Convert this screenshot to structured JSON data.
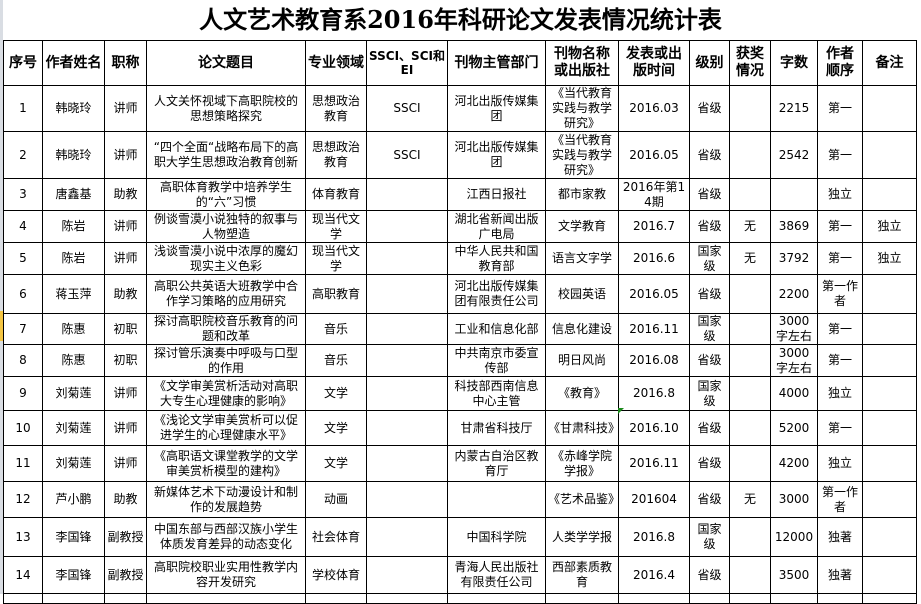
{
  "title": "人文艺术教育系2016年科研论文发表情况统计表",
  "columns": [
    "序号",
    "作者姓名",
    "职称",
    "论文题目",
    "专业领域",
    "SSCI、SCI和EI",
    "刊物主管部门",
    "刊物名称或出版社",
    "发表或出版时间",
    "级别",
    "获奖情况",
    "字数",
    "作者顺序",
    "备注"
  ],
  "rows": [
    [
      "1",
      "韩晓玲",
      "讲师",
      "人文关怀视域下高职院校的思想策略探究",
      "思想政治教育",
      "SSCI",
      "河北出版传媒集团",
      "《当代教育实践与教学研究》",
      "2016.03",
      "省级",
      "",
      "2215",
      "第一",
      ""
    ],
    [
      "2",
      "韩晓玲",
      "讲师",
      "“四个全面“战略布局下的高职大学生思想政治教育创新",
      "思想政治教育",
      "SSCI",
      "河北出版传媒集团",
      "《当代教育实践与教学研究》",
      "2016.05",
      "省级",
      "",
      "2542",
      "第一",
      ""
    ],
    [
      "3",
      "唐鑫基",
      "助教",
      "高职体育教学中培养学生的“六”习惯",
      "体育教育",
      "",
      "江西日报社",
      "都市家教",
      "2016年第14期",
      "省级",
      "",
      "",
      "独立",
      ""
    ],
    [
      "4",
      "陈岩",
      "讲师",
      "例谈雪漠小说独特的叙事与人物塑造",
      "现当代文学",
      "",
      "湖北省新闻出版广电局",
      "文学教育",
      "2016.7",
      "省级",
      "无",
      "3869",
      "第一",
      "独立"
    ],
    [
      "5",
      "陈岩",
      "讲师",
      "浅谈雪漠小说中浓厚的魔幻现实主义色彩",
      "现当代文学",
      "",
      "中华人民共和国教育部",
      "语言文字学",
      "2016.6",
      "国家级",
      "无",
      "3792",
      "第一",
      "独立"
    ],
    [
      "6",
      "蒋玉萍",
      "助教",
      "高职公共英语大班教学中合作学习策略的应用研究",
      "高职教育",
      "",
      "河北出版传媒集团有限责任公司",
      "校园英语",
      "2016.05",
      "省级",
      "",
      "2200",
      "第一作者",
      ""
    ],
    [
      "7",
      "陈惠",
      "初职",
      "探讨高职院校音乐教育的问题和改革",
      "音乐",
      "",
      "工业和信息化部",
      "信息化建设",
      "2016.11",
      "国家级",
      "",
      "3000字左右",
      "第一",
      ""
    ],
    [
      "8",
      "陈惠",
      "初职",
      "探讨管乐演奏中呼吸与口型的作用",
      "音乐",
      "",
      "中共南京市委宣传部",
      "明日风尚",
      "2016.08",
      "省级",
      "",
      "3000字左右",
      "第一",
      ""
    ],
    [
      "9",
      "刘菊莲",
      "讲师",
      "《文学审美赏析活动对高职大专生心理健康的影响》",
      "文学",
      "",
      "科技部西南信息中心主管",
      "《教育》",
      "2016.8",
      "国家级",
      "",
      "4000",
      "独立",
      ""
    ],
    [
      "10",
      "刘菊莲",
      "讲师",
      "《浅论文学审美赏析可以促进学生的心理健康水平》",
      "文学",
      "",
      "甘肃省科技厅",
      "《甘肃科技》",
      "2016.10",
      "省级",
      "",
      "5200",
      "第一",
      ""
    ],
    [
      "11",
      "刘菊莲",
      "讲师",
      "《高职语文课堂教学的文学审美赏析模型的建构》",
      "文学",
      "",
      "内蒙古自治区教育厅",
      "《赤峰学院学报》",
      "2016.11",
      "省级",
      "",
      "4200",
      "独立",
      ""
    ],
    [
      "12",
      "芦小鹏",
      "助教",
      "新媒体艺术下动漫设计和制作的发展趋势",
      "动画",
      "",
      "",
      "《艺术品鉴》",
      "201604",
      "省级",
      "无",
      "3000",
      "第一作者",
      ""
    ],
    [
      "13",
      "李国锋",
      "副教授",
      "中国东部与西部汉族小学生体质发育差异的动态变化",
      "社会体育",
      "",
      "中国科学院",
      "人类学学报",
      "2016.8",
      "国家级",
      "",
      "12000",
      "独著",
      ""
    ],
    [
      "14",
      "李国锋",
      "副教授",
      "高职院校职业实用性教学内容开发研究",
      "学校体育",
      "",
      "青海人民出版社有限责任公司",
      "西部素质教育",
      "2016.4",
      "省级",
      "",
      "3500",
      "独著",
      ""
    ]
  ]
}
